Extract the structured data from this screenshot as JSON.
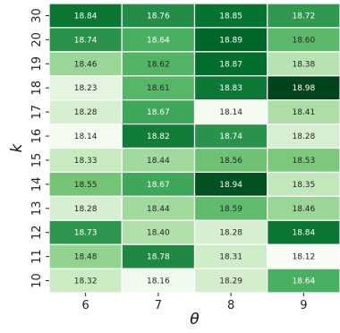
{
  "chart_data": {
    "type": "heatmap",
    "xlabel": "θ",
    "ylabel": "k",
    "x_categories": [
      "6",
      "7",
      "8",
      "9"
    ],
    "y_categories": [
      "30",
      "20",
      "19",
      "18",
      "17",
      "16",
      "15",
      "14",
      "13",
      "12",
      "11",
      "10"
    ],
    "values": [
      [
        18.84,
        18.76,
        18.85,
        18.72
      ],
      [
        18.74,
        18.64,
        18.89,
        18.6
      ],
      [
        18.46,
        18.62,
        18.87,
        18.38
      ],
      [
        18.23,
        18.61,
        18.83,
        18.98
      ],
      [
        18.28,
        18.67,
        18.14,
        18.41
      ],
      [
        18.14,
        18.82,
        18.74,
        18.28
      ],
      [
        18.33,
        18.44,
        18.56,
        18.53
      ],
      [
        18.55,
        18.67,
        18.94,
        18.35
      ],
      [
        18.28,
        18.44,
        18.59,
        18.46
      ],
      [
        18.73,
        18.4,
        18.28,
        18.84
      ],
      [
        18.48,
        18.78,
        18.31,
        18.12
      ],
      [
        18.32,
        18.16,
        18.29,
        18.64
      ]
    ],
    "labels": [
      [
        "18.84",
        "18.76",
        "18.85",
        "18.72"
      ],
      [
        "18.74",
        "18.64",
        "18.89",
        "18.60"
      ],
      [
        "18.46",
        "18.62",
        "18.87",
        "18.38"
      ],
      [
        "18.23",
        "18.61",
        "18.83",
        "18.98"
      ],
      [
        "18.28",
        "18.67",
        "18.14",
        "18.41"
      ],
      [
        "18.14",
        "18.82",
        "18.74",
        "18.28"
      ],
      [
        "18.33",
        "18.44",
        "18.56",
        "18.53"
      ],
      [
        "18.55",
        "18.67",
        "18.94",
        "18.35"
      ],
      [
        "18.28",
        "18.44",
        "18.59",
        "18.46"
      ],
      [
        "18.73",
        "18.40",
        "18.28",
        "18.84"
      ],
      [
        "18.48",
        "18.78",
        "18.31",
        "18.12"
      ],
      [
        "18.32",
        "18.16",
        "18.29",
        "18.64"
      ]
    ],
    "colormap": "Greens",
    "color_range": [
      18.12,
      18.98
    ],
    "grid": false,
    "legend": "none"
  }
}
